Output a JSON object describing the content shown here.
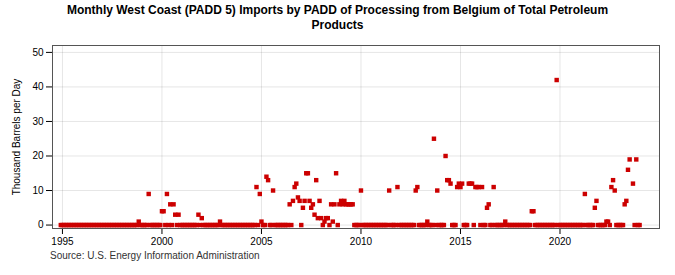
{
  "chart_data": {
    "type": "scatter",
    "title": "Monthly West Coast (PADD 5) Imports by PADD of Processing from Belgium of Total Petroleum\nProducts",
    "ylabel": "Thousand Barrels per Day",
    "source": "Source: U.S. Energy Information Administration",
    "color": "#cc0000",
    "marker": "square",
    "grid": true,
    "xlim": [
      1994.5,
      2025.0
    ],
    "ylim": [
      -1,
      52
    ],
    "xticks": [
      1995,
      2000,
      2005,
      2010,
      2015,
      2020
    ],
    "yticks": [
      0,
      10,
      20,
      30,
      40,
      50
    ],
    "x": [
      1994.917,
      1995.0,
      1995.083,
      1995.167,
      1995.25,
      1995.333,
      1995.417,
      1995.5,
      1995.583,
      1995.667,
      1995.75,
      1995.833,
      1995.917,
      1996.0,
      1996.083,
      1996.167,
      1996.25,
      1996.333,
      1996.417,
      1996.5,
      1996.583,
      1996.667,
      1996.75,
      1996.833,
      1996.917,
      1997.0,
      1997.083,
      1997.167,
      1997.25,
      1997.333,
      1997.417,
      1997.5,
      1997.583,
      1997.667,
      1997.75,
      1997.833,
      1997.917,
      1998.0,
      1998.083,
      1998.167,
      1998.25,
      1998.333,
      1998.417,
      1998.5,
      1998.583,
      1998.667,
      1998.75,
      1998.833,
      1998.917,
      1999.0,
      1999.083,
      1999.167,
      1999.25,
      1999.333,
      1999.417,
      1999.5,
      1999.583,
      1999.667,
      1999.75,
      1999.833,
      1999.917,
      2000.0,
      2000.083,
      2000.167,
      2000.25,
      2000.333,
      2000.417,
      2000.5,
      2000.583,
      2000.667,
      2000.75,
      2000.833,
      2000.917,
      2001.0,
      2001.083,
      2001.167,
      2001.25,
      2001.333,
      2001.417,
      2001.5,
      2001.583,
      2001.667,
      2001.75,
      2001.833,
      2001.917,
      2002.0,
      2002.083,
      2002.167,
      2002.25,
      2002.333,
      2002.417,
      2002.5,
      2002.583,
      2002.667,
      2002.75,
      2002.833,
      2002.917,
      2003.0,
      2003.083,
      2003.167,
      2003.25,
      2003.333,
      2003.417,
      2003.5,
      2003.583,
      2003.667,
      2003.75,
      2003.833,
      2003.917,
      2004.0,
      2004.083,
      2004.167,
      2004.25,
      2004.333,
      2004.417,
      2004.5,
      2004.583,
      2004.667,
      2004.75,
      2004.833,
      2004.917,
      2005.0,
      2005.083,
      2005.167,
      2005.25,
      2005.333,
      2005.417,
      2005.5,
      2005.583,
      2005.667,
      2005.75,
      2005.833,
      2005.917,
      2006.0,
      2006.083,
      2006.167,
      2006.25,
      2006.333,
      2006.417,
      2006.5,
      2006.583,
      2006.667,
      2006.75,
      2006.833,
      2006.917,
      2007.0,
      2007.083,
      2007.167,
      2007.25,
      2007.333,
      2007.417,
      2007.5,
      2007.583,
      2007.667,
      2007.75,
      2007.833,
      2007.917,
      2008.0,
      2008.083,
      2008.167,
      2008.25,
      2008.333,
      2008.417,
      2008.5,
      2008.583,
      2008.667,
      2008.75,
      2008.833,
      2008.917,
      2009.0,
      2009.083,
      2009.167,
      2009.25,
      2009.333,
      2009.417,
      2009.5,
      2009.583,
      2009.667,
      2009.75,
      2009.833,
      2009.917,
      2010.0,
      2010.083,
      2010.167,
      2010.25,
      2010.333,
      2010.417,
      2010.5,
      2010.583,
      2010.667,
      2010.75,
      2010.833,
      2010.917,
      2011.0,
      2011.083,
      2011.167,
      2011.25,
      2011.333,
      2011.417,
      2011.5,
      2011.583,
      2011.667,
      2011.75,
      2011.833,
      2011.917,
      2012.0,
      2012.083,
      2012.167,
      2012.25,
      2012.333,
      2012.417,
      2012.5,
      2012.583,
      2012.667,
      2012.75,
      2012.833,
      2012.917,
      2013.0,
      2013.083,
      2013.167,
      2013.25,
      2013.333,
      2013.417,
      2013.5,
      2013.583,
      2013.667,
      2013.75,
      2013.833,
      2013.917,
      2014.0,
      2014.083,
      2014.167,
      2014.25,
      2014.333,
      2014.417,
      2014.5,
      2014.583,
      2014.667,
      2014.75,
      2014.833,
      2014.917,
      2015.0,
      2015.083,
      2015.167,
      2015.25,
      2015.333,
      2015.417,
      2015.5,
      2015.583,
      2015.667,
      2015.75,
      2015.833,
      2015.917,
      2016.0,
      2016.083,
      2016.167,
      2016.25,
      2016.333,
      2016.417,
      2016.5,
      2016.583,
      2016.667,
      2016.75,
      2016.833,
      2016.917,
      2017.0,
      2017.083,
      2017.167,
      2017.25,
      2017.333,
      2017.417,
      2017.5,
      2017.583,
      2017.667,
      2017.75,
      2017.833,
      2017.917,
      2018.0,
      2018.083,
      2018.167,
      2018.25,
      2018.333,
      2018.417,
      2018.5,
      2018.583,
      2018.667,
      2018.75,
      2018.833,
      2018.917,
      2019.0,
      2019.083,
      2019.167,
      2019.25,
      2019.333,
      2019.417,
      2019.5,
      2019.583,
      2019.667,
      2019.75,
      2019.833,
      2019.917,
      2020.0,
      2020.083,
      2020.167,
      2020.25,
      2020.333,
      2020.417,
      2020.5,
      2020.583,
      2020.667,
      2020.75,
      2020.833,
      2020.917,
      2021.0,
      2021.083,
      2021.167,
      2021.25,
      2021.333,
      2021.417,
      2021.5,
      2021.583,
      2021.667,
      2021.75,
      2021.833,
      2021.917,
      2022.0,
      2022.083,
      2022.167,
      2022.25,
      2022.333,
      2022.417,
      2022.5,
      2022.583,
      2022.667,
      2022.75,
      2022.833,
      2022.917,
      2023.0,
      2023.083,
      2023.167,
      2023.25,
      2023.333,
      2023.417,
      2023.5,
      2023.667,
      2023.75,
      2023.833,
      2023.917,
      2024.0
    ],
    "values": [
      0,
      0,
      0,
      0,
      0,
      0,
      0,
      0,
      0,
      0,
      0,
      0,
      0,
      0,
      0,
      0,
      0,
      0,
      0,
      0,
      0,
      0,
      0,
      0,
      0,
      0,
      0,
      0,
      0,
      0,
      0,
      0,
      0,
      0,
      0,
      0,
      0,
      0,
      0,
      0,
      0,
      0,
      0,
      0,
      0,
      0,
      0,
      1,
      0,
      0,
      0,
      0,
      0,
      9,
      0,
      0,
      0,
      0,
      0,
      0,
      0,
      4,
      4,
      0,
      9,
      0,
      6,
      0,
      6,
      3,
      0,
      3,
      0,
      0,
      0,
      0,
      0,
      0,
      0,
      0,
      0,
      0,
      0,
      3,
      0,
      2,
      0,
      0,
      0,
      0,
      0,
      0,
      0,
      0,
      0,
      0,
      1,
      0,
      0,
      0,
      0,
      0,
      0,
      0,
      0,
      0,
      0,
      0,
      0,
      0,
      0,
      0,
      0,
      0,
      0,
      0,
      0,
      0,
      11,
      0,
      9,
      1,
      0,
      0,
      14,
      13,
      0,
      0,
      10,
      0,
      0,
      0,
      0,
      0,
      0,
      0,
      0,
      0,
      6,
      0,
      7,
      11,
      12,
      8,
      7,
      0,
      5,
      7,
      15,
      15,
      7,
      5,
      6,
      3,
      13,
      2,
      7,
      2,
      0,
      1,
      2,
      2,
      0,
      6,
      1,
      6,
      15,
      0,
      6,
      7,
      6,
      7,
      6,
      6,
      6,
      6,
      6,
      0,
      0,
      0,
      0,
      10,
      0,
      0,
      0,
      0,
      0,
      0,
      0,
      0,
      0,
      0,
      0,
      0,
      0,
      0,
      0,
      0,
      10,
      0,
      0,
      0,
      0,
      11,
      0,
      0,
      0,
      0,
      0,
      0,
      0,
      0,
      0,
      0,
      10,
      11,
      0,
      0,
      0,
      0,
      0,
      1,
      0,
      0,
      0,
      25,
      0,
      10,
      0,
      0,
      0,
      0,
      20,
      13,
      13,
      12,
      0,
      0,
      0,
      11,
      12,
      11,
      12,
      0,
      0,
      0,
      12,
      12,
      12,
      0,
      11,
      11,
      11,
      0,
      11,
      0,
      0,
      5,
      6,
      0,
      0,
      11,
      0,
      0,
      0,
      0,
      0,
      0,
      1,
      0,
      0,
      0,
      0,
      0,
      0,
      0,
      0,
      0,
      0,
      0,
      0,
      0,
      0,
      0,
      4,
      4,
      0,
      0,
      0,
      0,
      0,
      0,
      0,
      0,
      0,
      0,
      0,
      0,
      0,
      42,
      0,
      0,
      0,
      0,
      0,
      0,
      0,
      0,
      0,
      0,
      0,
      0,
      0,
      0,
      0,
      0,
      9,
      0,
      0,
      0,
      0,
      0,
      5,
      7,
      0,
      0,
      0,
      0,
      0,
      1,
      1,
      0,
      11,
      13,
      10,
      0,
      0,
      0,
      0,
      0,
      6,
      7,
      16,
      19,
      12,
      0,
      19,
      0,
      0
    ]
  }
}
